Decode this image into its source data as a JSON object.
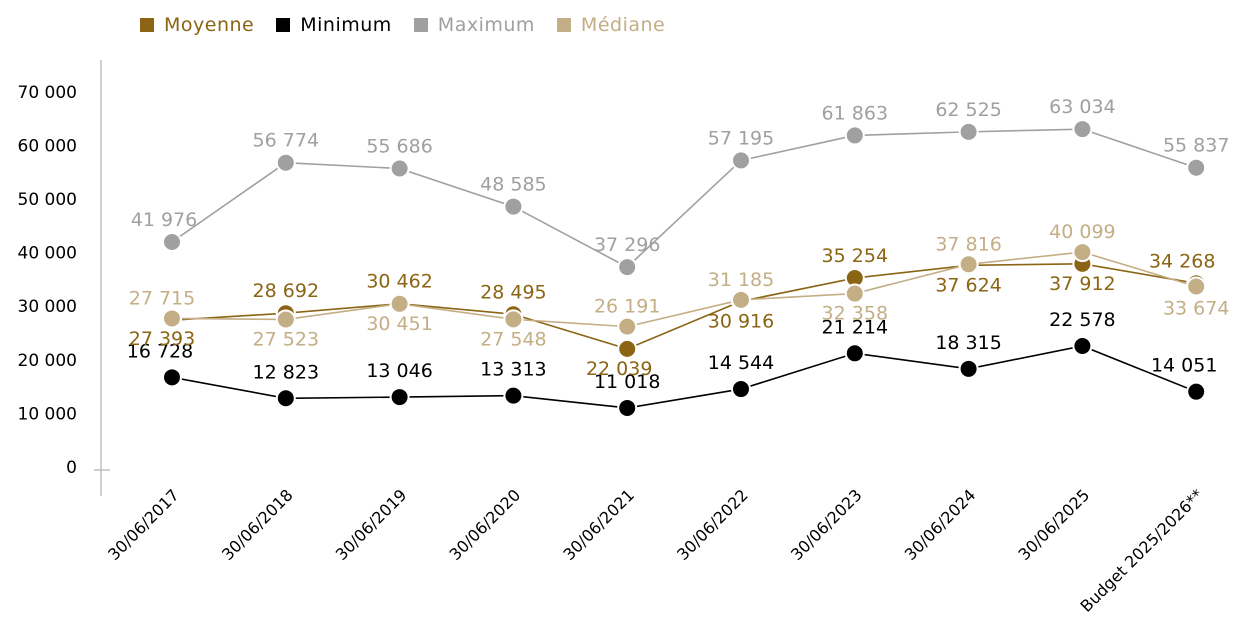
{
  "chart_data": {
    "type": "line",
    "categories": [
      "30/06/2017",
      "30/06/2018",
      "30/06/2019",
      "30/06/2020",
      "30/06/2021",
      "30/06/2022",
      "30/06/2023",
      "30/06/2024",
      "30/06/2025",
      "Budget 2025/2026**"
    ],
    "y_ticks": [
      "0",
      "10 000",
      "20 000",
      "30 000",
      "40 000",
      "50 000",
      "60 000",
      "70 000"
    ],
    "ylim": [
      0,
      70000
    ],
    "legend_position": "top-left",
    "grid": false,
    "series": [
      {
        "name": "Moyenne",
        "color": "#8B6414",
        "values": [
          27393,
          28692,
          30462,
          28495,
          22039,
          30916,
          35254,
          37624,
          37912,
          34268
        ],
        "labels": [
          "27 393",
          "28 692",
          "30 462",
          "28 495",
          "22 039",
          "30 916",
          "35 254",
          "37 624",
          "37 912",
          "34 268"
        ]
      },
      {
        "name": "Minimum",
        "color": "#000000",
        "values": [
          16728,
          12823,
          13046,
          13313,
          11018,
          14544,
          21214,
          18315,
          22578,
          14051
        ],
        "labels": [
          "16 728",
          "12 823",
          "13 046",
          "13 313",
          "11 018",
          "14 544",
          "21 214",
          "18 315",
          "22 578",
          "14 051"
        ]
      },
      {
        "name": "Maximum",
        "color": "#A0A0A0",
        "values": [
          41976,
          56774,
          55686,
          48585,
          37296,
          57195,
          61863,
          62525,
          63034,
          55837
        ],
        "labels": [
          "41 976",
          "56 774",
          "55 686",
          "48 585",
          "37 296",
          "57 195",
          "61 863",
          "62 525",
          "63 034",
          "55 837"
        ]
      },
      {
        "name": "Médiane",
        "color": "#C4AE85",
        "values": [
          27715,
          27523,
          30451,
          27548,
          26191,
          31185,
          32358,
          37816,
          40099,
          33674
        ],
        "labels": [
          "27 715",
          "27 523",
          "30 451",
          "27 548",
          "26 191",
          "31 185",
          "32 358",
          "37 816",
          "40 099",
          "33 674"
        ]
      }
    ]
  }
}
